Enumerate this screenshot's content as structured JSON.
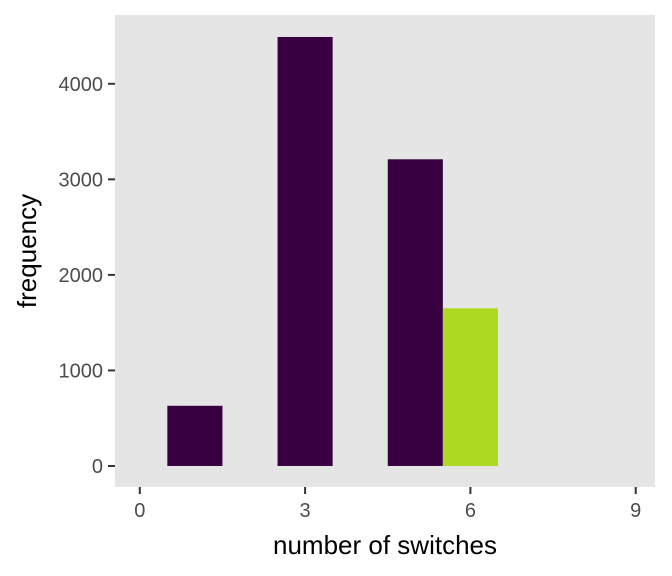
{
  "chart_data": {
    "type": "bar",
    "title": "",
    "xlabel": "number of switches",
    "ylabel": "frequency",
    "xlim": [
      -0.45,
      9.35
    ],
    "ylim": [
      -220,
      4720
    ],
    "x_ticks": [
      0,
      3,
      6,
      9
    ],
    "y_ticks": [
      0,
      1000,
      2000,
      3000,
      4000
    ],
    "bar_width": 1,
    "grid": false,
    "legend": "none",
    "panel_background": "#e5e5e5",
    "bars": [
      {
        "x": 1,
        "value": 630,
        "color": "#380040"
      },
      {
        "x": 3,
        "value": 4490,
        "color": "#380040"
      },
      {
        "x": 5,
        "value": 3210,
        "color": "#380040"
      },
      {
        "x": 6,
        "value": 1650,
        "color": "#add922"
      }
    ]
  }
}
